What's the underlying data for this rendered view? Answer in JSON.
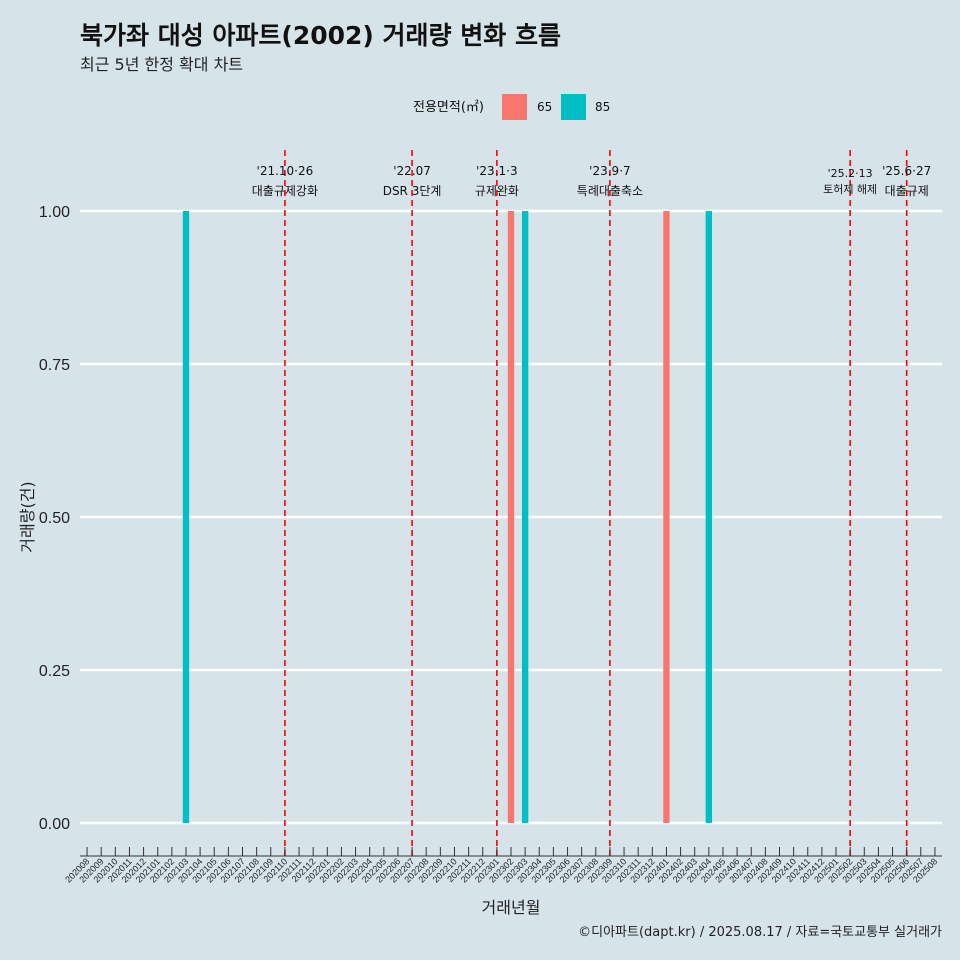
{
  "title": "북가좌 대성 아파트(2002) 거래량 변화 흐름",
  "subtitle": "최근 5년 한정 확대 차트",
  "caption": "©디아파트(dapt.kr) / 2025.08.17 / 자료=국토교통부 실거래가",
  "legend": {
    "title": "전용면적(㎡)",
    "items": [
      {
        "label": "65",
        "color": "#f8766d"
      },
      {
        "label": "85",
        "color": "#00bfc4"
      }
    ]
  },
  "chart_data": {
    "type": "bar",
    "xlabel": "거래년월",
    "ylabel": "거래량(건)",
    "ylim": [
      0,
      1
    ],
    "yticks": [
      "0.00",
      "0.25",
      "0.50",
      "0.75",
      "1.00"
    ],
    "categories": [
      "202008",
      "202009",
      "202010",
      "202011",
      "202012",
      "202101",
      "202102",
      "202103",
      "202104",
      "202105",
      "202106",
      "202107",
      "202108",
      "202109",
      "202110",
      "202111",
      "202112",
      "202201",
      "202202",
      "202203",
      "202204",
      "202205",
      "202206",
      "202207",
      "202208",
      "202209",
      "202210",
      "202211",
      "202212",
      "202301",
      "202302",
      "202303",
      "202304",
      "202305",
      "202306",
      "202307",
      "202308",
      "202309",
      "202310",
      "202311",
      "202312",
      "202401",
      "202402",
      "202403",
      "202404",
      "202405",
      "202406",
      "202407",
      "202408",
      "202409",
      "202410",
      "202411",
      "202412",
      "202501",
      "202502",
      "202503",
      "202504",
      "202505",
      "202506",
      "202507",
      "202508"
    ],
    "series": [
      {
        "name": "65",
        "color": "#f8766d",
        "points": [
          {
            "x": "202302",
            "y": 1
          },
          {
            "x": "202401",
            "y": 1
          }
        ]
      },
      {
        "name": "85",
        "color": "#00bfc4",
        "points": [
          {
            "x": "202103",
            "y": 1
          },
          {
            "x": "202303",
            "y": 1
          },
          {
            "x": "202404",
            "y": 1
          }
        ]
      }
    ],
    "events": [
      {
        "x": "202110",
        "date": "'21.10·26",
        "label": "대출규제강화"
      },
      {
        "x": "202207",
        "date": "'22.07",
        "label": "DSR 3단계"
      },
      {
        "x": "202301",
        "date": "'23.1·3",
        "label": "규제완화"
      },
      {
        "x": "202309",
        "date": "'23.9·7",
        "label": "특례대출축소"
      },
      {
        "x": "202502",
        "date": "'25.2·13",
        "label": "토허제 해제"
      },
      {
        "x": "202506",
        "date": "'25.6·27",
        "label": "대출규제"
      }
    ],
    "grid": true,
    "legend_position": "top"
  }
}
